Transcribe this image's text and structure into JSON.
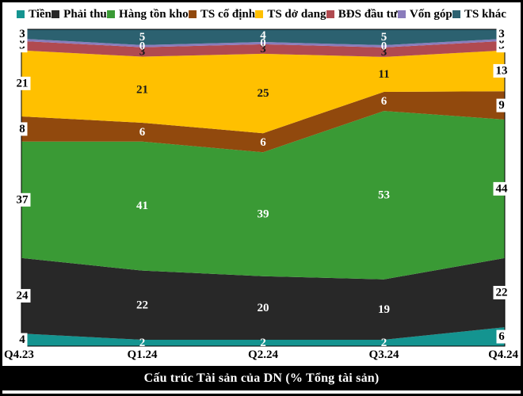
{
  "title_bar": {
    "text": "Cấu trúc Tài sản của DN (% Tổng tài sản)",
    "background": "#000000",
    "text_color": "#FFFFFF"
  },
  "chart_data": {
    "type": "area",
    "stacking": "percent",
    "title": "Cấu trúc Tài sản của DN (% Tổng tài sản)",
    "xlabel": "",
    "ylabel": "% Tổng tài sản",
    "ylim": [
      0,
      100
    ],
    "grid": false,
    "legend_position": "top",
    "categories": [
      "Q4.23",
      "Q1.24",
      "Q2.24",
      "Q3.24",
      "Q4.24"
    ],
    "series": [
      {
        "name": "Tiền",
        "color": "#149490",
        "label_color": "#FFFFFF",
        "values": [
          4,
          2,
          2,
          2,
          6
        ]
      },
      {
        "name": "Phải thu",
        "color": "#282828",
        "label_color": "#FFFFFF",
        "values": [
          24,
          22,
          20,
          19,
          22
        ]
      },
      {
        "name": "Hàng tồn kho",
        "color": "#3A9A35",
        "label_color": "#FFFFFF",
        "values": [
          37,
          41,
          39,
          53,
          44
        ]
      },
      {
        "name": "TS cố định",
        "color": "#91490D",
        "label_color": "#FFFFFF",
        "values": [
          8,
          6,
          6,
          6,
          9
        ]
      },
      {
        "name": "TS dở dang",
        "color": "#FFC000",
        "label_color": "#1A1A1A",
        "values": [
          21,
          21,
          25,
          11,
          13
        ]
      },
      {
        "name": "BĐS đầu tư",
        "color": "#B04A50",
        "label_color": "#1A1A1A",
        "values": [
          3,
          3,
          3,
          3,
          3
        ]
      },
      {
        "name": "Vốn góp",
        "color": "#8A7CBC",
        "label_color": "#FFFFFF",
        "values": [
          0,
          0,
          0,
          0,
          0
        ]
      },
      {
        "name": "TS khác",
        "color": "#2C6170",
        "label_color": "#FFFFFF",
        "values": [
          3,
          5,
          4,
          5,
          3
        ]
      }
    ]
  }
}
